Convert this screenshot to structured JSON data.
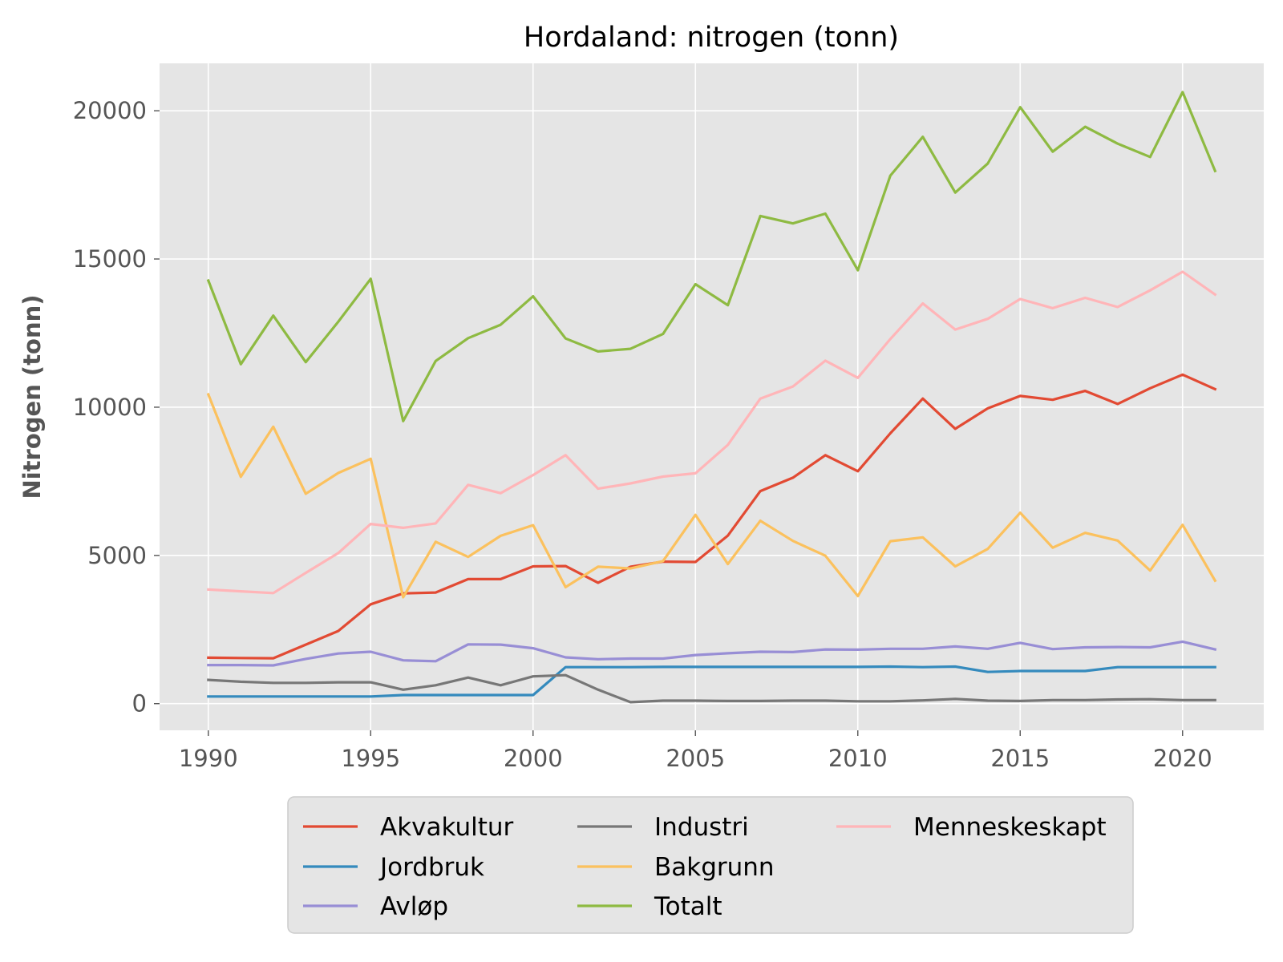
{
  "chart_data": {
    "type": "line",
    "title": "Hordaland: nitrogen (tonn)",
    "xlabel": "",
    "ylabel": "Nitrogen (tonn)",
    "xlim": [
      1988.5,
      2022.5
    ],
    "ylim": [
      -900,
      21600
    ],
    "xticks": [
      "1990",
      "1995",
      "2000",
      "2005",
      "2010",
      "2015",
      "2020"
    ],
    "yticks": [
      "0",
      "5000",
      "10000",
      "15000",
      "20000"
    ],
    "grid": true,
    "legend_position": "below",
    "background": "#e5e5e5",
    "x": [
      1990,
      1991,
      1992,
      1993,
      1994,
      1995,
      1996,
      1997,
      1998,
      1999,
      2000,
      2001,
      2002,
      2003,
      2004,
      2005,
      2006,
      2007,
      2008,
      2009,
      2010,
      2011,
      2012,
      2013,
      2014,
      2015,
      2016,
      2017,
      2018,
      2019,
      2020,
      2021
    ],
    "series": [
      {
        "name": "Akvakultur",
        "color": "#E24A33",
        "values": [
          1550,
          1540,
          1530,
          1990,
          2450,
          3350,
          3720,
          3750,
          4200,
          4200,
          4630,
          4640,
          4080,
          4620,
          4790,
          4780,
          5670,
          7170,
          7620,
          8380,
          7840,
          9120,
          10290,
          9270,
          9960,
          10380,
          10250,
          10550,
          10110,
          10640,
          11100,
          10610
        ]
      },
      {
        "name": "Jordbruk",
        "color": "#348ABD",
        "values": [
          240,
          240,
          240,
          240,
          240,
          240,
          290,
          290,
          290,
          290,
          290,
          1230,
          1230,
          1230,
          1240,
          1240,
          1240,
          1240,
          1240,
          1240,
          1240,
          1250,
          1230,
          1250,
          1070,
          1100,
          1100,
          1100,
          1230,
          1230,
          1230,
          1230
        ]
      },
      {
        "name": "Avløp",
        "color": "#988ED5",
        "values": [
          1300,
          1300,
          1290,
          1510,
          1690,
          1750,
          1460,
          1430,
          2000,
          1990,
          1870,
          1560,
          1500,
          1520,
          1520,
          1640,
          1700,
          1750,
          1740,
          1830,
          1820,
          1850,
          1850,
          1930,
          1850,
          2050,
          1840,
          1900,
          1910,
          1900,
          2090,
          1830
        ]
      },
      {
        "name": "Industri",
        "color": "#777777",
        "values": [
          800,
          740,
          700,
          700,
          720,
          720,
          470,
          620,
          880,
          620,
          920,
          960,
          470,
          50,
          100,
          100,
          90,
          90,
          100,
          100,
          80,
          80,
          110,
          160,
          100,
          90,
          120,
          120,
          140,
          150,
          120,
          120
        ]
      },
      {
        "name": "Bakgrunn",
        "color": "#FBC15E",
        "values": [
          10430,
          7650,
          9340,
          7080,
          7780,
          8260,
          3590,
          5460,
          4950,
          5660,
          6020,
          3930,
          4620,
          4560,
          4810,
          6370,
          4710,
          6170,
          5490,
          4990,
          3630,
          5480,
          5610,
          4630,
          5220,
          6440,
          5260,
          5760,
          5500,
          4490,
          6030,
          4150
        ]
      },
      {
        "name": "Totalt",
        "color": "#8EBA42",
        "values": [
          14270,
          11450,
          13090,
          11520,
          12880,
          14330,
          9530,
          11560,
          12330,
          12780,
          13740,
          12320,
          11880,
          11970,
          12470,
          14150,
          13440,
          16450,
          16200,
          16530,
          14620,
          17810,
          19120,
          17240,
          18220,
          20120,
          18620,
          19460,
          18890,
          18440,
          20630,
          17970
        ]
      },
      {
        "name": "Menneskeskapt",
        "color": "#FFB5B8",
        "values": [
          3850,
          3790,
          3730,
          4410,
          5080,
          6060,
          5930,
          6080,
          7380,
          7100,
          7710,
          8380,
          7250,
          7430,
          7660,
          7770,
          8730,
          10290,
          10700,
          11570,
          10990,
          12300,
          13500,
          12620,
          12980,
          13650,
          13340,
          13690,
          13380,
          13940,
          14570,
          13800
        ]
      }
    ]
  }
}
